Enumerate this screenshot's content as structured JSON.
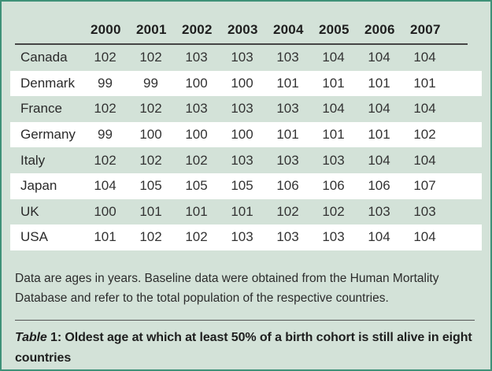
{
  "colors": {
    "background": "#d3e2d8",
    "border": "#3e9178",
    "stripe": "#ffffff",
    "text": "#262626",
    "header_rule": "#454545"
  },
  "table": {
    "corner_label": "",
    "columns": [
      "2000",
      "2001",
      "2002",
      "2003",
      "2004",
      "2005",
      "2006",
      "2007"
    ],
    "rows": [
      {
        "country": "Canada",
        "values": [
          "102",
          "102",
          "103",
          "103",
          "103",
          "104",
          "104",
          "104"
        ]
      },
      {
        "country": "Denmark",
        "values": [
          "99",
          "99",
          "100",
          "100",
          "101",
          "101",
          "101",
          "101"
        ]
      },
      {
        "country": "France",
        "values": [
          "102",
          "102",
          "103",
          "103",
          "103",
          "104",
          "104",
          "104"
        ]
      },
      {
        "country": "Germany",
        "values": [
          "99",
          "100",
          "100",
          "100",
          "101",
          "101",
          "101",
          "102"
        ]
      },
      {
        "country": "Italy",
        "values": [
          "102",
          "102",
          "102",
          "103",
          "103",
          "103",
          "104",
          "104"
        ]
      },
      {
        "country": "Japan",
        "values": [
          "104",
          "105",
          "105",
          "105",
          "106",
          "106",
          "106",
          "107"
        ]
      },
      {
        "country": "UK",
        "values": [
          "100",
          "101",
          "101",
          "101",
          "102",
          "102",
          "103",
          "103"
        ]
      },
      {
        "country": "USA",
        "values": [
          "101",
          "102",
          "102",
          "103",
          "103",
          "103",
          "104",
          "104"
        ]
      }
    ]
  },
  "footnote": "Data are ages in years. Baseline data were obtained from the Human Mortality Database and refer to the total population of the respective countries.",
  "caption": {
    "label_italic": "Table",
    "label_bold": " 1: ",
    "text": "Oldest age at which at least 50% of a birth cohort is still alive in eight countries"
  },
  "chart_data": {
    "type": "table",
    "title": "Table 1: Oldest age at which at least 50% of a birth cohort is still alive in eight countries",
    "categories": [
      2000,
      2001,
      2002,
      2003,
      2004,
      2005,
      2006,
      2007
    ],
    "unit": "age in years",
    "series": [
      {
        "name": "Canada",
        "values": [
          102,
          102,
          103,
          103,
          103,
          104,
          104,
          104
        ]
      },
      {
        "name": "Denmark",
        "values": [
          99,
          99,
          100,
          100,
          101,
          101,
          101,
          101
        ]
      },
      {
        "name": "France",
        "values": [
          102,
          102,
          103,
          103,
          103,
          104,
          104,
          104
        ]
      },
      {
        "name": "Germany",
        "values": [
          99,
          100,
          100,
          100,
          101,
          101,
          101,
          102
        ]
      },
      {
        "name": "Italy",
        "values": [
          102,
          102,
          102,
          103,
          103,
          103,
          104,
          104
        ]
      },
      {
        "name": "Japan",
        "values": [
          104,
          105,
          105,
          105,
          106,
          106,
          106,
          107
        ]
      },
      {
        "name": "UK",
        "values": [
          100,
          101,
          101,
          101,
          102,
          102,
          103,
          103
        ]
      },
      {
        "name": "USA",
        "values": [
          101,
          102,
          102,
          103,
          103,
          103,
          104,
          104
        ]
      }
    ],
    "footnote": "Data are ages in years. Baseline data were obtained from the Human Mortality Database and refer to the total population of the respective countries."
  }
}
